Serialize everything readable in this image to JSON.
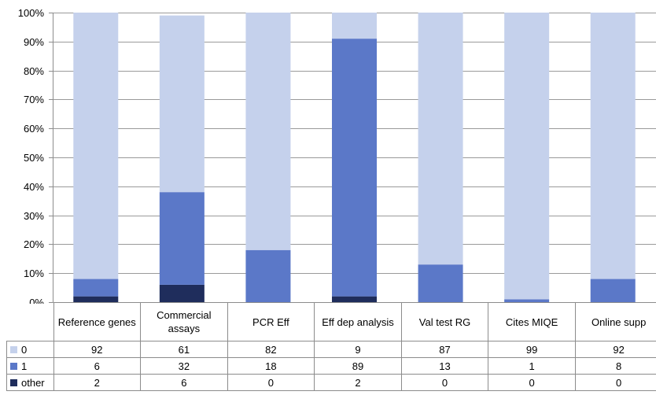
{
  "chart_data": {
    "type": "bar",
    "stacked": true,
    "percent": true,
    "categories": [
      "Reference genes",
      "Commercial assays",
      "PCR Eff",
      "Eff dep analysis",
      "Val test RG",
      "Cites MIQE",
      "Online supp"
    ],
    "series": [
      {
        "name": "other",
        "color": "#1f2d5c",
        "values": [
          2,
          6,
          0,
          2,
          0,
          0,
          0
        ]
      },
      {
        "name": "1",
        "color": "#5b78c8",
        "values": [
          6,
          32,
          18,
          89,
          13,
          1,
          8
        ]
      },
      {
        "name": "0",
        "color": "#c5d1ec",
        "values": [
          92,
          61,
          82,
          9,
          87,
          99,
          92
        ]
      }
    ],
    "yticks": [
      "0%",
      "10%",
      "20%",
      "30%",
      "40%",
      "50%",
      "60%",
      "70%",
      "80%",
      "90%",
      "100%"
    ],
    "ylim": [
      0,
      100
    ],
    "grid": true,
    "legend": "data-table"
  }
}
